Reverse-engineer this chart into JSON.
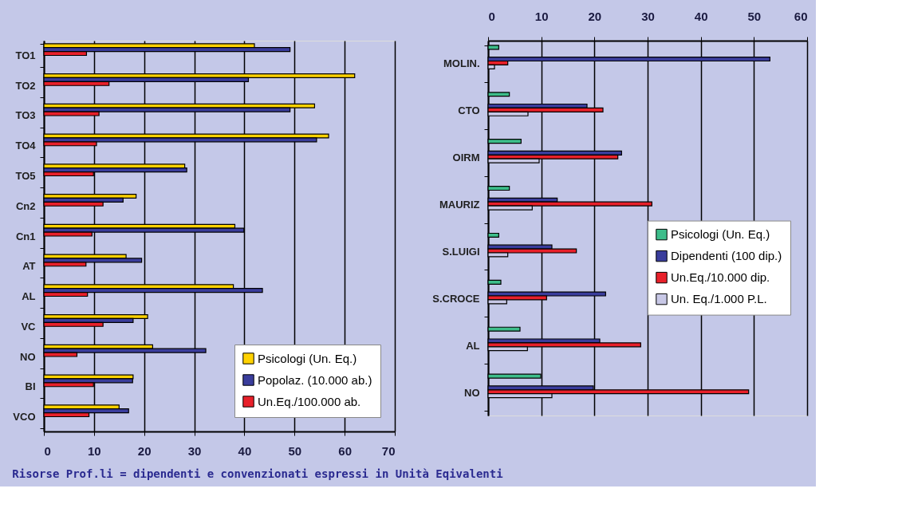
{
  "chart_data": [
    {
      "type": "bar",
      "orientation": "horizontal",
      "categories": [
        "TO1",
        "TO2",
        "TO3",
        "TO4",
        "TO5",
        "Cn2",
        "Cn1",
        "AT",
        "AL",
        "VC",
        "NO",
        "BI",
        "VCO"
      ],
      "series": [
        {
          "name": "Psicologi (Un. Eq.)",
          "color": "#ffd200",
          "values": [
            42,
            62,
            54,
            56.8,
            28.1,
            18.4,
            38.1,
            16.4,
            37.8,
            20.7,
            21.7,
            17.8,
            15
          ]
        },
        {
          "name": "Popolaz. (10.000 ab.)",
          "color": "#3a3d9c",
          "values": [
            49.1,
            40.8,
            49.1,
            54.4,
            28.5,
            15.8,
            39.9,
            19.5,
            43.6,
            17.8,
            32.3,
            17.7,
            16.9
          ]
        },
        {
          "name": "Un.Eq./100.000 ab.",
          "color": "#e8202a",
          "values": [
            8.5,
            13,
            11,
            10.5,
            9.9,
            11.8,
            9.6,
            8.4,
            8.7,
            11.8,
            6.6,
            9.9,
            9
          ]
        }
      ],
      "xlim": [
        0,
        70
      ],
      "xticks": [
        0,
        10,
        20,
        30,
        40,
        50,
        60,
        70
      ],
      "grid": "x",
      "legend": "bottom right",
      "annotations": [
        "Risorse Prof.li = dipendenti e convenzionati espressi in Unità Eqivalenti"
      ]
    },
    {
      "type": "bar",
      "orientation": "horizontal",
      "categories": [
        "MOLIN.",
        "CTO",
        "OIRM",
        "MAURIZ",
        "S.LUIGI",
        "S.CROCE",
        "AL",
        "NO"
      ],
      "series": [
        {
          "name": "Psicologi (Un. Eq.)",
          "axis": "x2",
          "color": "#3dbd8a",
          "values": [
            2,
            4,
            6.2,
            4,
            2,
            2.4,
            6,
            9.9
          ]
        },
        {
          "name": "Dipendenti (100 dip.)",
          "axis": "x2",
          "color": "#3a3d9c",
          "values": [
            53,
            18.6,
            25.1,
            13,
            12,
            22.1,
            21,
            19.8
          ]
        },
        {
          "name": "Un.Eq./10.000 dip.",
          "axis": "x2",
          "color": "#e8202a",
          "values": [
            3.7,
            21.6,
            24.4,
            30.8,
            16.6,
            11,
            28.7,
            49
          ]
        },
        {
          "name": "Un. Eq./1.000 P.L.",
          "axis": "x2",
          "color": "#c8c8e6",
          "values": [
            1.2,
            7.5,
            9.6,
            8.3,
            3.7,
            3.5,
            7.4,
            12
          ]
        }
      ],
      "x2lim": [
        0,
        60
      ],
      "x2ticks": [
        0,
        10,
        20,
        30,
        40,
        50,
        60
      ],
      "grid": "x",
      "legend": "right"
    }
  ]
}
